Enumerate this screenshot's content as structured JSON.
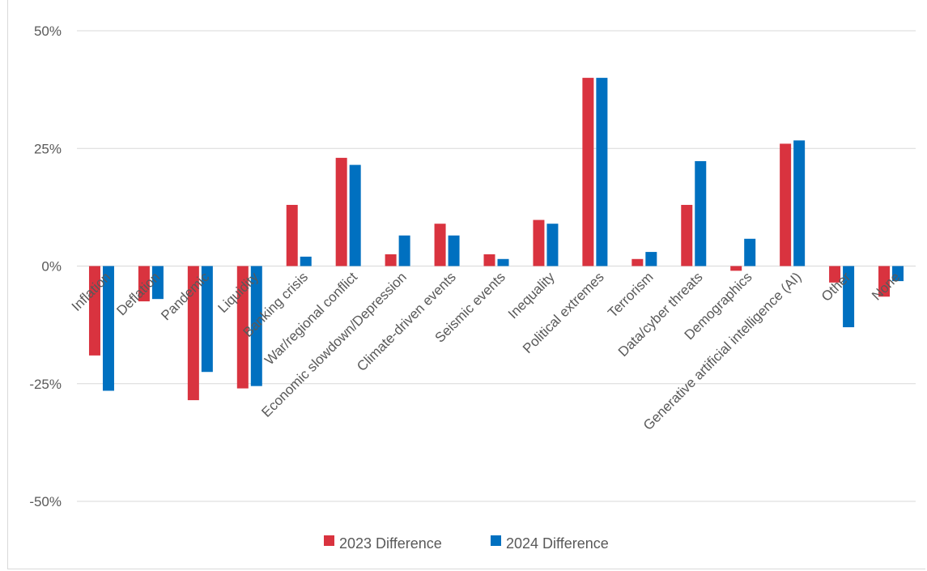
{
  "chart_data": {
    "type": "bar",
    "categories": [
      "Inflation",
      "Deflation",
      "Pandemic",
      "Liquidity",
      "Banking crisis",
      "War/regional conflict",
      "Economic slowdown/Depression",
      "Climate-driven events",
      "Seismic events",
      "Inequality",
      "Political extremes",
      "Terrorism",
      "Data/cyber threats",
      "Demographics",
      "Generative artificial intelligence (AI)",
      "Other",
      "None"
    ],
    "series": [
      {
        "name": "2023 Difference",
        "color": "#d9333f",
        "values": [
          -19,
          -7.5,
          -28.5,
          -26,
          13,
          23,
          2.5,
          9,
          2.5,
          9.8,
          40,
          1.5,
          13,
          -1,
          26,
          -3.5,
          -6.5
        ]
      },
      {
        "name": "2024 Difference",
        "color": "#0070c0",
        "values": [
          -26.5,
          -7,
          -22.5,
          -25.5,
          2,
          21.5,
          6.5,
          6.5,
          1.5,
          9,
          40,
          3,
          22.3,
          5.8,
          26.7,
          -13,
          -3.2
        ]
      }
    ],
    "yticks": [
      "50%",
      "25%",
      "0%",
      "-25%",
      "-50%"
    ],
    "ylim": [
      -50,
      50
    ],
    "xlabel": "",
    "ylabel": "",
    "grid": true,
    "legend": "bottom"
  }
}
